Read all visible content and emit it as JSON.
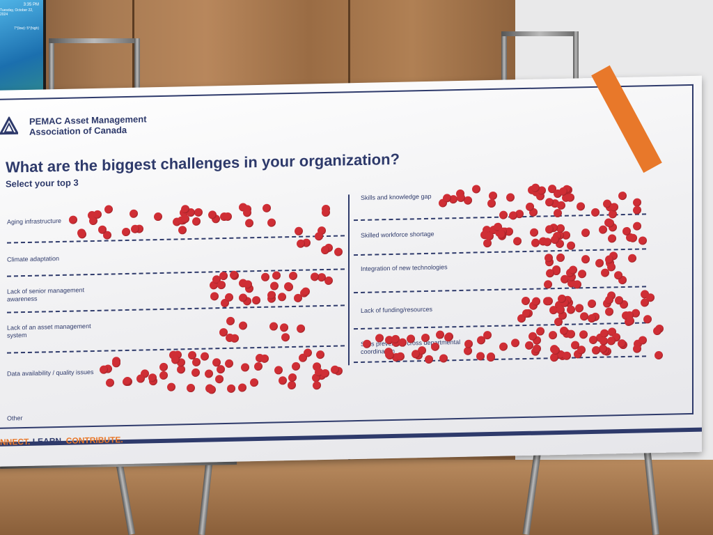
{
  "screen": {
    "time": "3:35 PM",
    "date": "Tuesday, October 22, 2024",
    "temp": "7°(low): 5°(high)"
  },
  "org": {
    "name_line1": "PEMAC Asset Management",
    "name_line2": "Association of Canada"
  },
  "question": "What are the biggest challenges in your organization?",
  "subtitle": "Select your top 3",
  "left_items": [
    "Aging infrastructure",
    "Climate adaptation",
    "Lack of senior management awareness",
    "Lack of an asset management system",
    "Data availability / quality issues"
  ],
  "right_items": [
    "Skills and knowledge gap",
    "Skilled workforce shortage",
    "Integration of new technologies",
    "Lack of funding/resources",
    "Silos preventing cross departmental coordination"
  ],
  "other_label": "Other",
  "tagline": {
    "part1": "NNECT.",
    "part2": "LEARN.",
    "part3": "CONTRIBUTE."
  }
}
